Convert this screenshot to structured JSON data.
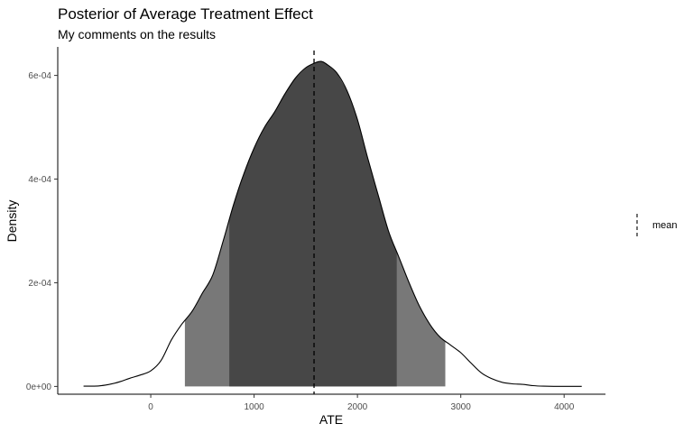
{
  "chart_data": {
    "type": "area",
    "title": "Posterior of Average Treatment Effect",
    "subtitle": "My comments on the results",
    "xlabel": "ATE",
    "ylabel": "Density",
    "xlim": [
      -900,
      4400
    ],
    "ylim": [
      -1.5e-05,
      0.000655
    ],
    "x_ticks": [
      0,
      1000,
      2000,
      3000,
      4000
    ],
    "x_tick_labels": [
      "0",
      "1000",
      "2000",
      "3000",
      "4000"
    ],
    "y_ticks": [
      0,
      0.0002,
      0.0004,
      0.0006
    ],
    "y_tick_labels": [
      "0e+00",
      "2e-04",
      "4e-04",
      "6e-04"
    ],
    "density": {
      "x": [
        -650,
        -600,
        -500,
        -400,
        -300,
        -200,
        -100,
        0,
        100,
        200,
        300,
        400,
        500,
        600,
        700,
        800,
        900,
        1000,
        1100,
        1200,
        1300,
        1400,
        1500,
        1600,
        1650,
        1700,
        1800,
        1900,
        2000,
        2100,
        2200,
        2300,
        2400,
        2500,
        2600,
        2700,
        2800,
        2900,
        3000,
        3100,
        3200,
        3300,
        3400,
        3500,
        3600,
        3700,
        3800,
        3900,
        4000,
        4100,
        4170
      ],
      "y": [
        5e-07,
        5e-07,
        1e-06,
        4e-06,
        9e-06,
        1.6e-05,
        2.2e-05,
        3e-05,
        5e-05,
        9e-05,
        0.00012,
        0.000145,
        0.00018,
        0.000215,
        0.00028,
        0.00035,
        0.00041,
        0.00046,
        0.0005,
        0.00053,
        0.000565,
        0.000595,
        0.000615,
        0.000625,
        0.000627,
        0.000622,
        0.000605,
        0.00057,
        0.000515,
        0.00044,
        0.00037,
        0.0003,
        0.00025,
        0.0002,
        0.000155,
        0.00012,
        9.5e-05,
        8e-05,
        6.5e-05,
        4.5e-05,
        2.6e-05,
        1.5e-05,
        8e-06,
        5e-06,
        4e-06,
        1.5e-06,
        5e-07,
        2e-07,
        1e-07,
        1e-07,
        1e-07
      ],
      "line_color": "#000000"
    },
    "bands": [
      {
        "x_range": [
          330,
          2850
        ],
        "fill": "#787878"
      },
      {
        "x_range": [
          760,
          2380
        ],
        "fill": "#474747"
      }
    ],
    "reference_lines": [
      {
        "name": "mean",
        "x": 1580,
        "style": "dashed",
        "color": "#000000"
      }
    ],
    "legend": {
      "position": "right",
      "items": [
        {
          "label": "mean",
          "style": "dashed"
        }
      ]
    },
    "grid": false
  }
}
